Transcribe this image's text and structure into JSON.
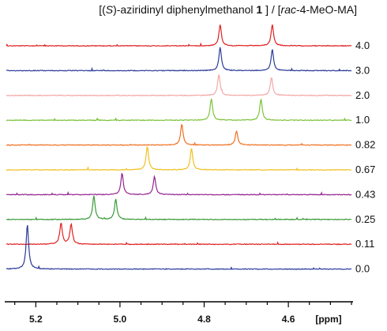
{
  "chart_data": {
    "type": "line",
    "title_parts": {
      "open": "[(",
      "s_italic": "S",
      "after_s": ")-aziridinyl diphenylmethanol ",
      "bold_num": "1",
      "mid": " ] / [",
      "rac_italic": "rac",
      "tail": "-4-MeO-MA]"
    },
    "xlabel": "[ppm]",
    "x_reversed": true,
    "xlim": [
      5.27,
      4.45
    ],
    "x_ticks": [
      5.2,
      5.0,
      4.8,
      4.6
    ],
    "x_tick_labels": [
      "5.2",
      "5.0",
      "4.8",
      "4.6"
    ],
    "traces": [
      {
        "label": "4.0",
        "color": "#e02020",
        "peaks": [
          {
            "x": 4.762,
            "h": 1.0
          },
          {
            "x": 4.638,
            "h": 1.0
          }
        ]
      },
      {
        "label": "3.0",
        "color": "#2a3a9a",
        "peaks": [
          {
            "x": 4.762,
            "h": 1.1
          },
          {
            "x": 4.638,
            "h": 1.0
          }
        ]
      },
      {
        "label": "2.0",
        "color": "#f4a7a7",
        "peaks": [
          {
            "x": 4.765,
            "h": 1.0
          },
          {
            "x": 4.64,
            "h": 0.85
          }
        ]
      },
      {
        "label": "1.0",
        "color": "#7cc23a",
        "peaks": [
          {
            "x": 4.783,
            "h": 1.0
          },
          {
            "x": 4.665,
            "h": 1.0
          }
        ]
      },
      {
        "label": "0.82",
        "color": "#f07020",
        "peaks": [
          {
            "x": 4.853,
            "h": 1.0
          },
          {
            "x": 4.723,
            "h": 0.65
          }
        ]
      },
      {
        "label": "0.67",
        "color": "#f0c020",
        "peaks": [
          {
            "x": 4.935,
            "h": 1.1
          },
          {
            "x": 4.83,
            "h": 1.0
          }
        ]
      },
      {
        "label": "0.43",
        "color": "#952390",
        "peaks": [
          {
            "x": 4.995,
            "h": 1.0
          },
          {
            "x": 4.918,
            "h": 0.85
          }
        ]
      },
      {
        "label": "0.25",
        "color": "#3a9a3a",
        "peaks": [
          {
            "x": 5.062,
            "h": 1.1
          },
          {
            "x": 5.01,
            "h": 0.95
          }
        ]
      },
      {
        "label": "0.11",
        "color": "#e02020",
        "peaks": [
          {
            "x": 5.14,
            "h": 1.0
          },
          {
            "x": 5.116,
            "h": 0.95
          }
        ]
      },
      {
        "label": "0.0",
        "color": "#2a3a9a",
        "peaks": [
          {
            "x": 5.22,
            "h": 2.1
          }
        ]
      }
    ]
  }
}
